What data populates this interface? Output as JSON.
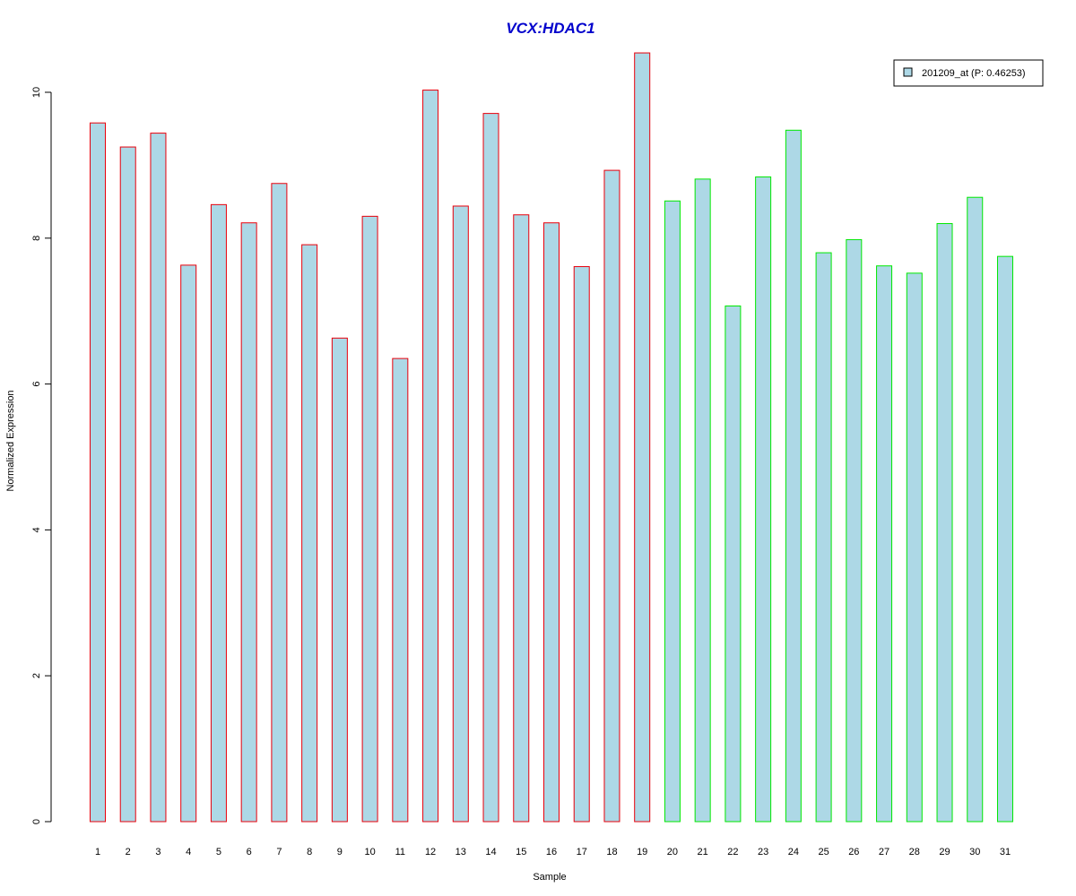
{
  "chart_data": {
    "type": "bar",
    "title": "VCX:HDAC1",
    "xlabel": "Sample",
    "ylabel": "Normalized Expression",
    "categories": [
      "1",
      "2",
      "3",
      "4",
      "5",
      "6",
      "7",
      "8",
      "9",
      "10",
      "11",
      "12",
      "13",
      "14",
      "15",
      "16",
      "17",
      "18",
      "19",
      "20",
      "21",
      "22",
      "23",
      "24",
      "25",
      "26",
      "27",
      "28",
      "29",
      "30",
      "31"
    ],
    "series": [
      {
        "name": "201209_at (P: 0.46253)",
        "values": [
          9.58,
          9.25,
          9.44,
          7.63,
          8.46,
          8.21,
          8.75,
          7.91,
          6.63,
          8.3,
          6.35,
          10.03,
          8.44,
          9.71,
          8.32,
          8.21,
          7.61,
          8.93,
          10.54,
          8.51,
          8.81,
          7.07,
          8.84,
          9.48,
          7.8,
          7.98,
          7.62,
          7.52,
          8.2,
          8.56,
          7.75
        ]
      }
    ],
    "bar_groups": [
      {
        "from": 1,
        "to": 19,
        "edge_color": "#e8000b"
      },
      {
        "from": 20,
        "to": 31,
        "edge_color": "#00e800"
      }
    ],
    "yticks": [
      0,
      2,
      4,
      6,
      8,
      10
    ],
    "ylim": [
      0,
      10.54
    ],
    "fill_color": "#add8e6",
    "title_color": "#0000cc",
    "grid": false,
    "legend_position": "top-right"
  }
}
